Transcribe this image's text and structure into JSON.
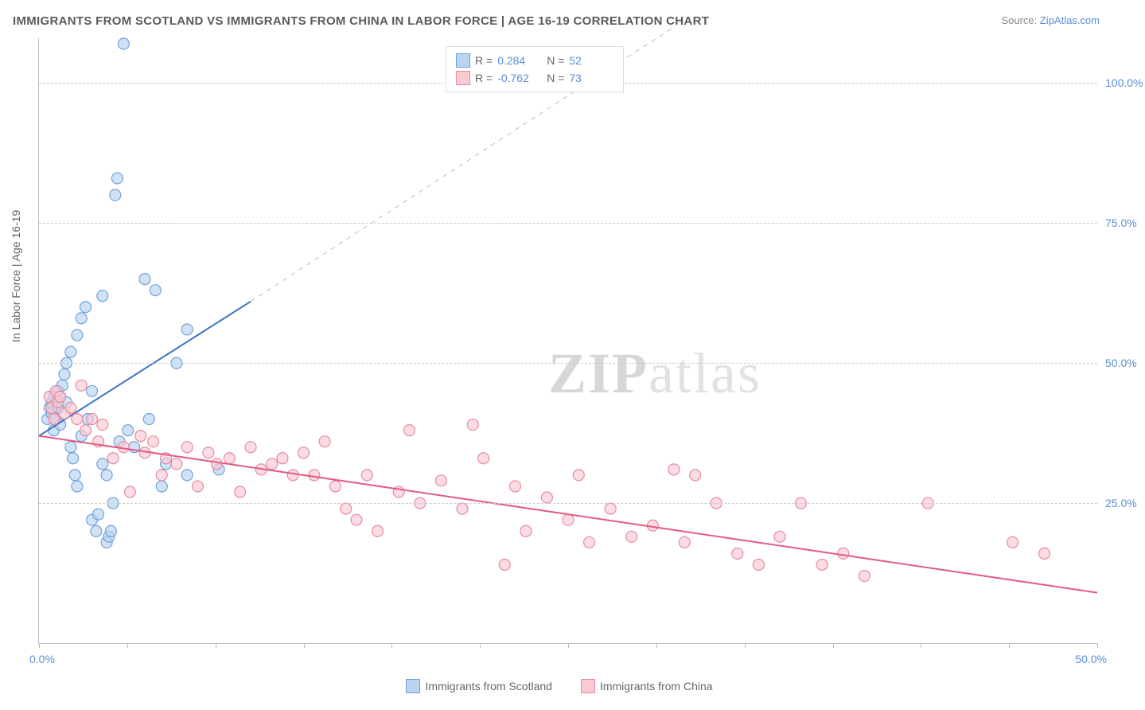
{
  "title": "IMMIGRANTS FROM SCOTLAND VS IMMIGRANTS FROM CHINA IN LABOR FORCE | AGE 16-19 CORRELATION CHART",
  "source_prefix": "Source: ",
  "source_link": "ZipAtlas.com",
  "yaxis_label": "In Labor Force | Age 16-19",
  "watermark_bold": "ZIP",
  "watermark_rest": "atlas",
  "chart": {
    "type": "scatter",
    "xlim": [
      0,
      50
    ],
    "ylim": [
      0,
      108
    ],
    "xticks": [
      0,
      4.17,
      8.33,
      12.5,
      16.67,
      20.83,
      25,
      29.17,
      33.33,
      37.5,
      41.67,
      45.83,
      50
    ],
    "yticks": [
      25,
      50,
      75,
      100
    ],
    "xlabels": {
      "0": "0.0%",
      "50": "50.0%"
    },
    "ylabels": {
      "25": "25.0%",
      "50": "50.0%",
      "75": "75.0%",
      "100": "100.0%"
    },
    "grid_color": "#cccccc",
    "axis_color": "#bbbbbb",
    "background": "#ffffff",
    "marker_radius": 7,
    "marker_stroke_width": 1.2,
    "line_width": 2
  },
  "series": [
    {
      "id": "scotland",
      "name": "Immigrants from Scotland",
      "fill": "#b9d3f0",
      "stroke": "#6fa3dd",
      "line_color": "#3b74c4",
      "r_label": "R =",
      "r_value": "0.284",
      "n_label": "N =",
      "n_value": "52",
      "trend": {
        "x1": 0,
        "y1": 37,
        "x2": 10,
        "y2": 61,
        "dash_x2": 30,
        "dash_y2": 110
      },
      "points": [
        [
          0.4,
          40
        ],
        [
          0.5,
          42
        ],
        [
          0.6,
          43
        ],
        [
          0.6,
          41
        ],
        [
          0.7,
          44
        ],
        [
          0.7,
          38
        ],
        [
          0.8,
          43
        ],
        [
          0.8,
          40
        ],
        [
          0.9,
          45
        ],
        [
          0.9,
          42
        ],
        [
          1.0,
          44
        ],
        [
          1.0,
          39
        ],
        [
          1.1,
          46
        ],
        [
          1.2,
          48
        ],
        [
          1.3,
          50
        ],
        [
          1.3,
          43
        ],
        [
          1.5,
          52
        ],
        [
          1.5,
          35
        ],
        [
          1.6,
          33
        ],
        [
          1.7,
          30
        ],
        [
          1.8,
          28
        ],
        [
          1.8,
          55
        ],
        [
          2.0,
          58
        ],
        [
          2.0,
          37
        ],
        [
          2.2,
          60
        ],
        [
          2.3,
          40
        ],
        [
          2.5,
          45
        ],
        [
          2.5,
          22
        ],
        [
          2.7,
          20
        ],
        [
          2.8,
          23
        ],
        [
          3.0,
          62
        ],
        [
          3.0,
          32
        ],
        [
          3.2,
          30
        ],
        [
          3.2,
          18
        ],
        [
          3.3,
          19
        ],
        [
          3.4,
          20
        ],
        [
          3.5,
          25
        ],
        [
          3.6,
          80
        ],
        [
          3.7,
          83
        ],
        [
          3.8,
          36
        ],
        [
          4.0,
          107
        ],
        [
          4.2,
          38
        ],
        [
          4.5,
          35
        ],
        [
          5.0,
          65
        ],
        [
          5.2,
          40
        ],
        [
          5.5,
          63
        ],
        [
          5.8,
          28
        ],
        [
          6.0,
          32
        ],
        [
          6.5,
          50
        ],
        [
          7.0,
          30
        ],
        [
          7.0,
          56
        ],
        [
          8.5,
          31
        ]
      ]
    },
    {
      "id": "china",
      "name": "Immigrants from China",
      "fill": "#f9c9d4",
      "stroke": "#e88aa2",
      "line_color": "#e35a84",
      "r_label": "R =",
      "r_value": "-0.762",
      "n_label": "N =",
      "n_value": "73",
      "trend": {
        "x1": 0,
        "y1": 37,
        "x2": 50,
        "y2": 9
      },
      "points": [
        [
          0.5,
          44
        ],
        [
          0.6,
          42
        ],
        [
          0.7,
          40
        ],
        [
          0.8,
          45
        ],
        [
          0.9,
          43
        ],
        [
          1.0,
          44
        ],
        [
          1.2,
          41
        ],
        [
          1.5,
          42
        ],
        [
          1.8,
          40
        ],
        [
          2.0,
          46
        ],
        [
          2.2,
          38
        ],
        [
          2.5,
          40
        ],
        [
          2.8,
          36
        ],
        [
          3.0,
          39
        ],
        [
          3.5,
          33
        ],
        [
          4.0,
          35
        ],
        [
          4.3,
          27
        ],
        [
          4.8,
          37
        ],
        [
          5.0,
          34
        ],
        [
          5.4,
          36
        ],
        [
          5.8,
          30
        ],
        [
          6.0,
          33
        ],
        [
          6.5,
          32
        ],
        [
          7.0,
          35
        ],
        [
          7.5,
          28
        ],
        [
          8.0,
          34
        ],
        [
          8.4,
          32
        ],
        [
          9.0,
          33
        ],
        [
          9.5,
          27
        ],
        [
          10.0,
          35
        ],
        [
          10.5,
          31
        ],
        [
          11.0,
          32
        ],
        [
          11.5,
          33
        ],
        [
          12.0,
          30
        ],
        [
          12.5,
          34
        ],
        [
          13.0,
          30
        ],
        [
          13.5,
          36
        ],
        [
          14.0,
          28
        ],
        [
          14.5,
          24
        ],
        [
          15.0,
          22
        ],
        [
          15.5,
          30
        ],
        [
          16.0,
          20
        ],
        [
          17.0,
          27
        ],
        [
          17.5,
          38
        ],
        [
          18.0,
          25
        ],
        [
          19.0,
          29
        ],
        [
          20.0,
          24
        ],
        [
          20.5,
          39
        ],
        [
          21.0,
          33
        ],
        [
          22.0,
          14
        ],
        [
          22.5,
          28
        ],
        [
          23.0,
          20
        ],
        [
          24.0,
          26
        ],
        [
          25.0,
          22
        ],
        [
          25.5,
          30
        ],
        [
          26.0,
          18
        ],
        [
          27.0,
          24
        ],
        [
          28.0,
          19
        ],
        [
          29.0,
          21
        ],
        [
          30.0,
          31
        ],
        [
          30.5,
          18
        ],
        [
          31.0,
          30
        ],
        [
          32.0,
          25
        ],
        [
          33.0,
          16
        ],
        [
          34.0,
          14
        ],
        [
          35.0,
          19
        ],
        [
          36.0,
          25
        ],
        [
          37.0,
          14
        ],
        [
          38.0,
          16
        ],
        [
          39.0,
          12
        ],
        [
          42.0,
          25
        ],
        [
          46.0,
          18
        ],
        [
          47.5,
          16
        ]
      ]
    }
  ],
  "legend_bottom": [
    {
      "swatch_fill": "#b9d3f0",
      "swatch_stroke": "#6fa3dd",
      "label": "Immigrants from Scotland"
    },
    {
      "swatch_fill": "#f9c9d4",
      "swatch_stroke": "#e88aa2",
      "label": "Immigrants from China"
    }
  ]
}
